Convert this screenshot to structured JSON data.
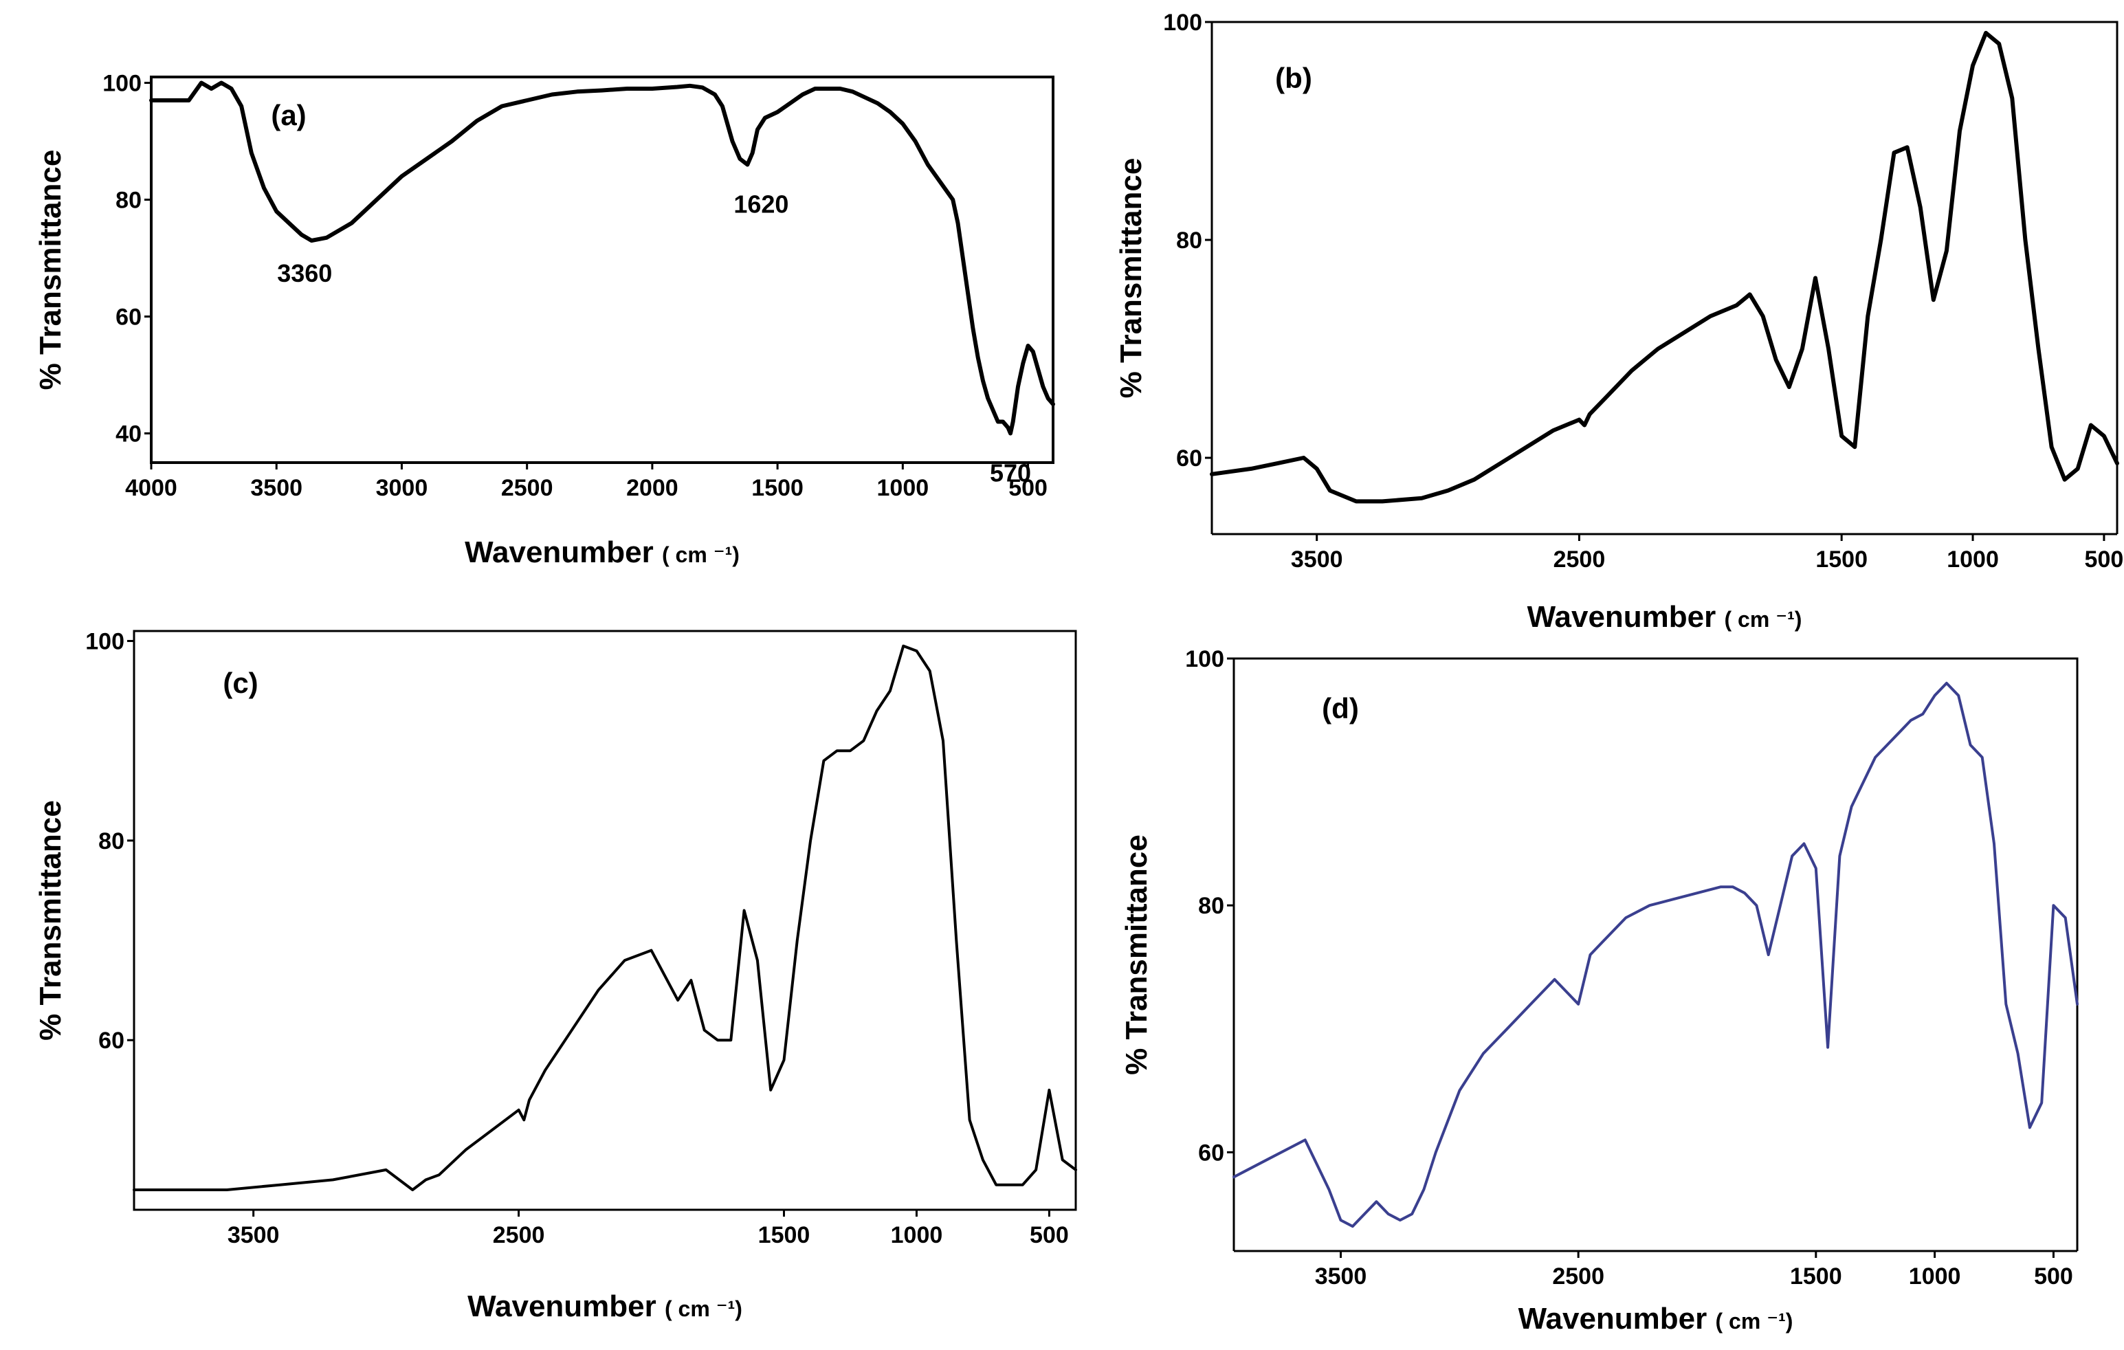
{
  "chart_data": [
    {
      "id": "a",
      "type": "line",
      "panel_label": "(a)",
      "xlabel": "Wavenumber",
      "x_unit": "( cm ⁻¹)",
      "ylabel": "% Transmittance",
      "xlim": [
        4000,
        400
      ],
      "ylim": [
        35,
        101
      ],
      "xticks": [
        4000,
        3500,
        3000,
        2500,
        2000,
        1500,
        1000,
        500
      ],
      "yticks": [
        40,
        60,
        80,
        100
      ],
      "line_color": "#000000",
      "annotations": [
        {
          "text": "3360",
          "x": 3360,
          "y": 73
        },
        {
          "text": "1620",
          "x": 1620,
          "y": 86
        },
        {
          "text": "570",
          "x": 570,
          "y": 40
        }
      ],
      "series": [
        {
          "name": "(a)",
          "x": [
            4000,
            3850,
            3800,
            3760,
            3720,
            3680,
            3640,
            3600,
            3550,
            3500,
            3450,
            3400,
            3360,
            3300,
            3200,
            3100,
            3000,
            2900,
            2800,
            2700,
            2600,
            2500,
            2400,
            2300,
            2200,
            2100,
            2000,
            1900,
            1850,
            1800,
            1750,
            1720,
            1700,
            1680,
            1650,
            1620,
            1600,
            1580,
            1550,
            1500,
            1450,
            1400,
            1350,
            1300,
            1250,
            1200,
            1150,
            1100,
            1050,
            1000,
            950,
            900,
            850,
            800,
            780,
            760,
            740,
            720,
            700,
            680,
            660,
            640,
            620,
            600,
            580,
            570,
            560,
            540,
            520,
            500,
            480,
            460,
            440,
            420,
            400
          ],
          "y": [
            97,
            97,
            100,
            99,
            100,
            99,
            96,
            88,
            82,
            78,
            76,
            74,
            73,
            73.5,
            76,
            80,
            84,
            87,
            90,
            93.5,
            96,
            97,
            98,
            98.5,
            98.7,
            99,
            99,
            99.3,
            99.5,
            99.2,
            98,
            96,
            93,
            90,
            87,
            86,
            88,
            92,
            94,
            95,
            96.5,
            98,
            99,
            99,
            99,
            98.5,
            97.5,
            96.5,
            95,
            93,
            90,
            86,
            83,
            80,
            76,
            70,
            64,
            58,
            53,
            49,
            46,
            44,
            42,
            42,
            41,
            40,
            42,
            48,
            52,
            55,
            54,
            51,
            48,
            46,
            45
          ]
        }
      ]
    },
    {
      "id": "b",
      "type": "line",
      "panel_label": "(b)",
      "xlabel": "Wavenumber",
      "x_unit": "( cm ⁻¹)",
      "ylabel": "% Transmittance",
      "xlim": [
        3900,
        450
      ],
      "ylim": [
        53,
        100
      ],
      "xticks": [
        3500,
        2500,
        1500,
        1000,
        500
      ],
      "yticks": [
        60,
        80,
        100
      ],
      "line_color": "#000000",
      "series": [
        {
          "name": "(b)",
          "x": [
            3900,
            3750,
            3650,
            3550,
            3500,
            3450,
            3400,
            3350,
            3250,
            3100,
            3000,
            2900,
            2800,
            2700,
            2600,
            2500,
            2480,
            2460,
            2400,
            2300,
            2200,
            2100,
            2000,
            1900,
            1850,
            1800,
            1750,
            1700,
            1650,
            1600,
            1550,
            1500,
            1450,
            1400,
            1350,
            1300,
            1250,
            1200,
            1150,
            1100,
            1050,
            1000,
            950,
            900,
            850,
            800,
            750,
            700,
            650,
            600,
            550,
            500,
            450
          ],
          "y": [
            58.5,
            59,
            59.5,
            60,
            59,
            57,
            56.5,
            56,
            56,
            56.3,
            57,
            58,
            59.5,
            61,
            62.5,
            63.5,
            63,
            64,
            65.5,
            68,
            70,
            71.5,
            73,
            74,
            75,
            73,
            69,
            66.5,
            70,
            76.5,
            70,
            62,
            61,
            73,
            80,
            88,
            88.5,
            83,
            74.5,
            79,
            90,
            96,
            99,
            98,
            93,
            80,
            70,
            61,
            58,
            59,
            63,
            62,
            59.5
          ]
        }
      ]
    },
    {
      "id": "c",
      "type": "line",
      "panel_label": "(c)",
      "xlabel": "Wavenumber",
      "x_unit": "( cm ⁻¹)",
      "ylabel": "% Transmittance",
      "xlim": [
        3950,
        400
      ],
      "ylim": [
        43,
        101
      ],
      "xticks": [
        3500,
        2500,
        1500,
        1000,
        500
      ],
      "yticks": [
        60,
        80,
        100
      ],
      "line_color": "#000000",
      "series": [
        {
          "name": "(c)",
          "x": [
            3950,
            3800,
            3600,
            3400,
            3200,
            3000,
            2900,
            2850,
            2800,
            2700,
            2600,
            2500,
            2480,
            2460,
            2400,
            2300,
            2200,
            2100,
            2000,
            1900,
            1850,
            1800,
            1750,
            1700,
            1650,
            1600,
            1550,
            1500,
            1450,
            1400,
            1350,
            1300,
            1250,
            1200,
            1150,
            1100,
            1050,
            1000,
            950,
            900,
            850,
            800,
            750,
            700,
            650,
            600,
            550,
            500,
            450,
            400
          ],
          "y": [
            45,
            45,
            45,
            45.5,
            46,
            47,
            45,
            46,
            46.5,
            49,
            51,
            53,
            52,
            54,
            57,
            61,
            65,
            68,
            69,
            64,
            66,
            61,
            60,
            60,
            73,
            68,
            55,
            58,
            70,
            80,
            88,
            89,
            89,
            90,
            93,
            95,
            99.5,
            99,
            97,
            90,
            70,
            52,
            48,
            45.5,
            45.5,
            45.5,
            47,
            55,
            48,
            47
          ]
        }
      ]
    },
    {
      "id": "d",
      "type": "line",
      "panel_label": "(d)",
      "xlabel": "Wavenumber",
      "x_unit": "( cm ⁻¹)",
      "ylabel": "% Transmittance",
      "xlim": [
        3950,
        400
      ],
      "ylim": [
        52,
        100
      ],
      "xticks": [
        3500,
        2500,
        1500,
        1000,
        500
      ],
      "yticks": [
        60,
        80,
        100
      ],
      "line_color": "#3a3f8f",
      "series": [
        {
          "name": "(d)",
          "x": [
            3950,
            3800,
            3700,
            3650,
            3600,
            3550,
            3500,
            3450,
            3400,
            3350,
            3300,
            3250,
            3200,
            3150,
            3100,
            3000,
            2900,
            2800,
            2700,
            2600,
            2500,
            2450,
            2400,
            2300,
            2200,
            2100,
            2000,
            1900,
            1850,
            1800,
            1750,
            1700,
            1650,
            1600,
            1550,
            1500,
            1450,
            1400,
            1350,
            1300,
            1250,
            1200,
            1150,
            1100,
            1050,
            1000,
            950,
            900,
            850,
            800,
            750,
            700,
            650,
            600,
            550,
            500,
            450,
            400
          ],
          "y": [
            58,
            59.5,
            60.5,
            61,
            59,
            57,
            54.5,
            54,
            55,
            56,
            55,
            54.5,
            55,
            57,
            60,
            65,
            68,
            70,
            72,
            74,
            72,
            76,
            77,
            79,
            80,
            80.5,
            81,
            81.5,
            81.5,
            81,
            80,
            76,
            80,
            84,
            85,
            83,
            68.5,
            84,
            88,
            90,
            92,
            93,
            94,
            95,
            95.5,
            97,
            98,
            97,
            93,
            92,
            85,
            72,
            68,
            62,
            64,
            80,
            79,
            72
          ]
        }
      ]
    }
  ]
}
